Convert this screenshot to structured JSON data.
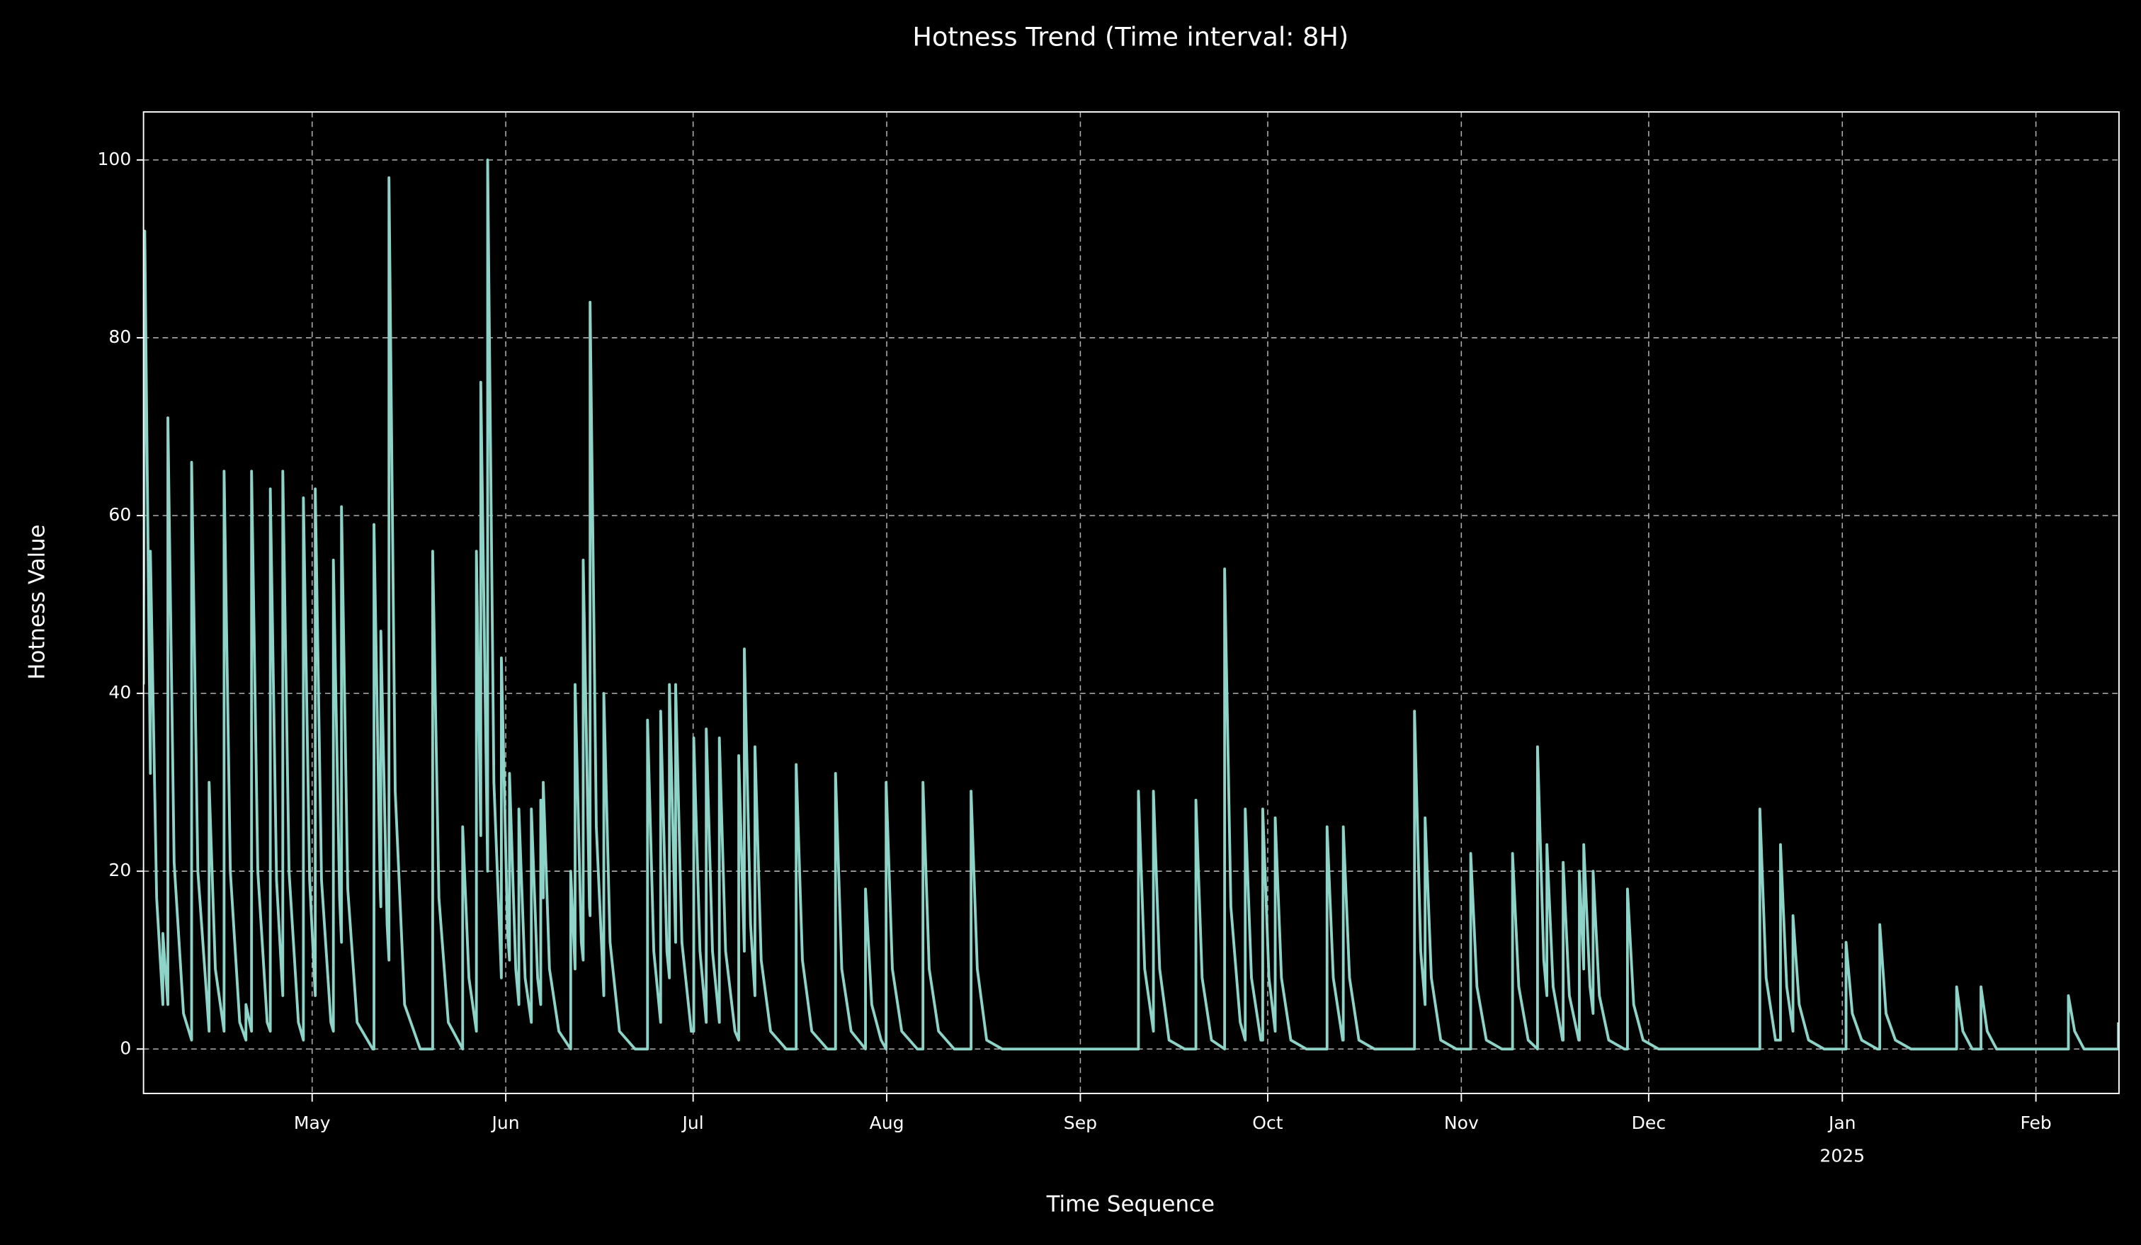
{
  "chart_data": {
    "type": "line",
    "title": "Hotness Trend (Time interval: 8H)",
    "x_label": "Time Sequence",
    "y_label": "Hotness Value",
    "grid": true,
    "xlim": [
      0,
      316.3
    ],
    "ylim": [
      -5,
      105.4
    ],
    "yticks": [
      0,
      20,
      40,
      60,
      80,
      100
    ],
    "xticks": [
      {
        "value": 27,
        "label": "May"
      },
      {
        "value": 58,
        "label": "Jun"
      },
      {
        "value": 88,
        "label": "Jul"
      },
      {
        "value": 119,
        "label": "Aug"
      },
      {
        "value": 150,
        "label": "Sep"
      },
      {
        "value": 180,
        "label": "Oct"
      },
      {
        "value": 211,
        "label": "Nov"
      },
      {
        "value": 241,
        "label": "Dec"
      },
      {
        "value": 272,
        "label": "Jan\n2025"
      },
      {
        "value": 303,
        "label": "Feb"
      }
    ],
    "x": [
      0,
      0.2,
      1.1,
      1.1,
      2.1,
      3.1,
      3.1,
      3.9,
      3.9,
      4.9,
      6.4,
      7.7,
      7.7,
      8.7,
      10.5,
      10.5,
      11.5,
      12.9,
      12.9,
      13.9,
      15.4,
      16.4,
      16.4,
      17.3,
      17.3,
      18.3,
      19.8,
      20.3,
      20.3,
      21.3,
      22.3,
      22.3,
      23.3,
      24.8,
      25.6,
      25.6,
      26.6,
      27.5,
      27.5,
      28.5,
      30.0,
      30.4,
      30.4,
      31.4,
      31.7,
      31.7,
      32.7,
      34.2,
      36.7,
      36.9,
      36.9,
      37.9,
      38.0,
      38.0,
      39.0,
      39.3,
      39.3,
      40.3,
      41.8,
      44.3,
      46.3,
      46.3,
      47.3,
      48.8,
      51.1,
      51.1,
      52.1,
      53.3,
      53.3,
      54.0,
      54.0,
      55.1,
      55.1,
      56.1,
      57.3,
      57.3,
      58.3,
      58.6,
      58.6,
      59.6,
      60.1,
      60.1,
      61.1,
      62.1,
      62.1,
      63.1,
      63.6,
      63.6,
      64.0,
      64.0,
      65.0,
      66.5,
      68.4,
      68.4,
      69.1,
      69.1,
      70.1,
      70.4,
      70.4,
      71.4,
      71.5,
      71.5,
      72.5,
      73.7,
      73.7,
      74.7,
      76.2,
      78.7,
      80.7,
      80.7,
      81.7,
      82.8,
      82.8,
      83.8,
      84.2,
      84.2,
      85.2,
      85.2,
      86.2,
      87.7,
      88.1,
      88.1,
      89.1,
      90.1,
      90.1,
      91.1,
      92.2,
      92.2,
      93.2,
      94.7,
      95.3,
      95.3,
      96.2,
      96.2,
      97.2,
      97.9,
      97.9,
      98.9,
      100.4,
      102.9,
      104.5,
      104.5,
      105.5,
      107.0,
      109.5,
      110.8,
      110.8,
      111.8,
      113.3,
      115.6,
      115.6,
      116.6,
      118.1,
      118.9,
      118.9,
      119.9,
      121.4,
      123.9,
      124.8,
      124.8,
      125.8,
      127.3,
      129.8,
      132.5,
      132.5,
      133.5,
      135.0,
      137.5,
      159.3,
      159.3,
      160.3,
      161.7,
      161.7,
      162.7,
      164.2,
      166.7,
      168.5,
      168.5,
      169.5,
      171.0,
      173.1,
      173.1,
      174.1,
      175.6,
      176.4,
      176.4,
      177.4,
      178.9,
      179.2,
      179.2,
      180.2,
      181.2,
      181.2,
      182.2,
      183.7,
      186.2,
      189.5,
      189.5,
      190.5,
      192.0,
      192.1,
      192.1,
      193.1,
      194.6,
      197.1,
      203.5,
      203.5,
      204.5,
      205.2,
      205.2,
      206.2,
      207.7,
      210.2,
      212.5,
      212.5,
      213.5,
      215.0,
      217.5,
      219.2,
      219.2,
      220.2,
      221.7,
      223.2,
      223.2,
      224.2,
      224.7,
      224.7,
      225.7,
      227.2,
      227.3,
      227.3,
      228.3,
      229.8,
      229.9,
      229.9,
      230.6,
      230.6,
      231.6,
      232.1,
      232.1,
      233.1,
      234.6,
      237.1,
      237.6,
      237.6,
      238.6,
      240.1,
      242.6,
      258.8,
      258.8,
      259.8,
      261.3,
      262.1,
      262.1,
      263.1,
      264.1,
      264.1,
      265.1,
      266.6,
      269.1,
      272.6,
      272.6,
      273.6,
      275.1,
      277.6,
      278.0,
      278.0,
      279.0,
      280.5,
      283.0,
      290.3,
      290.3,
      291.3,
      292.8,
      294.2,
      294.2,
      295.2,
      296.7,
      299.2,
      308.2,
      308.2,
      309.2,
      310.7,
      313.2,
      316.2,
      316.2
    ],
    "series": [
      {
        "color": "#8dd3c7",
        "values": [
          41,
          92,
          31,
          56,
          17,
          5,
          13,
          5,
          71,
          21,
          4,
          1,
          66,
          20,
          2,
          30,
          9,
          2,
          65,
          20,
          3,
          1,
          5,
          2,
          65,
          20,
          3,
          2,
          63,
          19,
          6,
          65,
          20,
          3,
          1,
          62,
          19,
          6,
          63,
          19,
          3,
          2,
          55,
          17,
          12,
          61,
          18,
          3,
          0,
          0,
          59,
          18,
          16,
          47,
          14,
          10,
          98,
          29,
          5,
          0,
          0,
          56,
          17,
          3,
          0,
          25,
          8,
          2,
          56,
          24,
          75,
          20,
          100,
          30,
          8,
          44,
          13,
          10,
          31,
          9,
          5,
          27,
          8,
          3,
          27,
          8,
          5,
          28,
          17,
          30,
          9,
          2,
          0,
          20,
          9,
          41,
          12,
          10,
          55,
          16,
          15,
          84,
          25,
          6,
          40,
          12,
          2,
          0,
          0,
          37,
          11,
          3,
          38,
          11,
          8,
          41,
          12,
          41,
          12,
          2,
          2,
          35,
          11,
          3,
          36,
          11,
          3,
          35,
          11,
          2,
          1,
          33,
          11,
          45,
          14,
          6,
          34,
          10,
          2,
          0,
          0,
          32,
          10,
          2,
          0,
          0,
          31,
          9,
          2,
          0,
          18,
          5,
          1,
          0,
          30,
          9,
          2,
          0,
          0,
          30,
          9,
          2,
          0,
          0,
          29,
          9,
          1,
          0,
          0,
          29,
          9,
          2,
          29,
          9,
          1,
          0,
          0,
          28,
          8,
          1,
          0,
          54,
          16,
          3,
          1,
          27,
          8,
          1,
          1,
          27,
          8,
          2,
          26,
          8,
          1,
          0,
          0,
          25,
          8,
          1,
          1,
          25,
          8,
          1,
          0,
          0,
          38,
          11,
          5,
          26,
          8,
          1,
          0,
          0,
          22,
          7,
          1,
          0,
          0,
          22,
          7,
          1,
          0,
          34,
          10,
          6,
          23,
          7,
          1,
          1,
          21,
          6,
          1,
          1,
          20,
          9,
          23,
          7,
          4,
          20,
          6,
          1,
          0,
          0,
          18,
          5,
          1,
          0,
          0,
          27,
          8,
          1,
          1,
          23,
          7,
          2,
          15,
          5,
          1,
          0,
          0,
          12,
          4,
          1,
          0,
          0,
          14,
          4,
          1,
          0,
          0,
          7,
          2,
          0,
          0,
          7,
          2,
          0,
          0,
          0,
          6,
          2,
          0,
          0,
          0,
          3
        ]
      }
    ]
  }
}
